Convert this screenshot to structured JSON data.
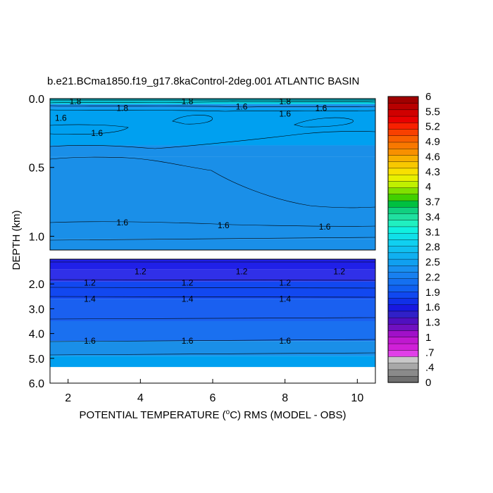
{
  "chart_data": {
    "type": "contour",
    "title": "b.e21.BCma1850.f19_g17.8kaControl-2deg.001 ATLANTIC BASIN",
    "xlabel_prefix": "POTENTIAL TEMPERATURE (",
    "xlabel_degree": "o",
    "xlabel_suffix": "C) RMS (MODEL - OBS)",
    "ylabel": "DEPTH (km)",
    "xlim": [
      1.5,
      10.5
    ],
    "x_ticks": [
      2,
      4,
      6,
      8,
      10
    ],
    "upper_panel": {
      "ylim": [
        0.0,
        1.1
      ],
      "y_ticks": [
        {
          "v": 0.0,
          "label": "0.0"
        },
        {
          "v": 0.5,
          "label": "0.5"
        },
        {
          "v": 1.0,
          "label": "1.0"
        }
      ],
      "bands": [
        {
          "top": 0.0,
          "bottom": 0.02,
          "color": "#00a8b8"
        },
        {
          "top": 0.02,
          "bottom": 0.04,
          "color": "#00d0e0"
        },
        {
          "top": 0.04,
          "bottom": 0.07,
          "color": "#1a8fe8"
        },
        {
          "top": 0.07,
          "bottom": 0.34,
          "color": "#00a0f0"
        },
        {
          "top": 0.34,
          "bottom": 0.42,
          "color": "#1a8fe8"
        },
        {
          "top": 0.42,
          "bottom": 0.88,
          "color": "#1a8fe8"
        },
        {
          "top": 0.88,
          "bottom": 1.02,
          "color": "#1a8fe8"
        },
        {
          "top": 1.02,
          "bottom": 1.1,
          "color": "#1a8fe8"
        }
      ],
      "contour_labels": [
        {
          "x": 2.2,
          "y": 0.02,
          "text": "1.8"
        },
        {
          "x": 1.8,
          "y": 0.14,
          "text": "1.6"
        },
        {
          "x": 3.5,
          "y": 0.07,
          "text": "1.8"
        },
        {
          "x": 5.3,
          "y": 0.02,
          "text": "1.8"
        },
        {
          "x": 6.8,
          "y": 0.06,
          "text": "1.6"
        },
        {
          "x": 8.0,
          "y": 0.02,
          "text": "1.8"
        },
        {
          "x": 8.0,
          "y": 0.11,
          "text": "1.6"
        },
        {
          "x": 9.0,
          "y": 0.07,
          "text": "1.6"
        },
        {
          "x": 2.8,
          "y": 0.25,
          "text": "1.6"
        },
        {
          "x": 3.5,
          "y": 0.9,
          "text": "1.6"
        },
        {
          "x": 6.3,
          "y": 0.92,
          "text": "1.6"
        },
        {
          "x": 9.1,
          "y": 0.93,
          "text": "1.6"
        }
      ]
    },
    "lower_panel": {
      "ylim": [
        1.0,
        6.0
      ],
      "y_ticks": [
        {
          "v": 2.0,
          "label": "2.0"
        },
        {
          "v": 3.0,
          "label": "3.0"
        },
        {
          "v": 4.0,
          "label": "4.0"
        },
        {
          "v": 5.0,
          "label": "5.0"
        },
        {
          "v": 6.0,
          "label": "6.0"
        }
      ],
      "bands": [
        {
          "top": 1.0,
          "bottom": 1.4,
          "color": "#2020e8"
        },
        {
          "top": 1.4,
          "bottom": 1.9,
          "color": "#3030e8"
        },
        {
          "top": 1.9,
          "bottom": 2.6,
          "color": "#1248f0"
        },
        {
          "top": 2.6,
          "bottom": 3.5,
          "color": "#1a60f0"
        },
        {
          "top": 3.5,
          "bottom": 4.3,
          "color": "#1a70f0"
        },
        {
          "top": 4.3,
          "bottom": 4.9,
          "color": "#1a8fe8"
        },
        {
          "top": 4.9,
          "bottom": 5.35,
          "color": "#00a0f0"
        }
      ],
      "contour_labels": [
        {
          "x": 4.0,
          "y": 1.5,
          "text": "1.2"
        },
        {
          "x": 6.8,
          "y": 1.5,
          "text": "1.2"
        },
        {
          "x": 9.5,
          "y": 1.5,
          "text": "1.2"
        },
        {
          "x": 2.6,
          "y": 1.95,
          "text": "1.2"
        },
        {
          "x": 5.3,
          "y": 1.95,
          "text": "1.2"
        },
        {
          "x": 8.0,
          "y": 1.95,
          "text": "1.2"
        },
        {
          "x": 2.6,
          "y": 2.6,
          "text": "1.4"
        },
        {
          "x": 5.3,
          "y": 2.6,
          "text": "1.4"
        },
        {
          "x": 8.0,
          "y": 2.6,
          "text": "1.4"
        },
        {
          "x": 2.6,
          "y": 4.3,
          "text": "1.6"
        },
        {
          "x": 5.3,
          "y": 4.3,
          "text": "1.6"
        },
        {
          "x": 8.0,
          "y": 4.3,
          "text": "1.6"
        }
      ]
    },
    "colorbar": {
      "range": [
        0,
        6
      ],
      "colors": [
        "#707070",
        "#8a8a8a",
        "#a8a8a8",
        "#c8c8c8",
        "#e040e8",
        "#d020d8",
        "#c018d0",
        "#a010c8",
        "#7010c0",
        "#5010c0",
        "#3020c8",
        "#1818e0",
        "#1030e8",
        "#1048f0",
        "#1060f0",
        "#1470f0",
        "#1880f0",
        "#1890f0",
        "#10a0f0",
        "#10b0f0",
        "#10c0f0",
        "#10d0f0",
        "#10e0e8",
        "#10f0e0",
        "#20f0c0",
        "#20e0a0",
        "#10d080",
        "#00c040",
        "#40d000",
        "#80e000",
        "#c0f000",
        "#e8f000",
        "#f8e000",
        "#f8c800",
        "#f8b000",
        "#f89000",
        "#f87800",
        "#f86000",
        "#f84000",
        "#f82000",
        "#e80000",
        "#d00000",
        "#b80000",
        "#a00000"
      ],
      "labels": [
        "0",
        ".4",
        ".7",
        "1",
        "1.3",
        "1.6",
        "1.9",
        "2.2",
        "2.5",
        "2.8",
        "3.1",
        "3.4",
        "3.7",
        "4",
        "4.3",
        "4.6",
        "4.9",
        "5.2",
        "5.5",
        "6"
      ]
    }
  }
}
